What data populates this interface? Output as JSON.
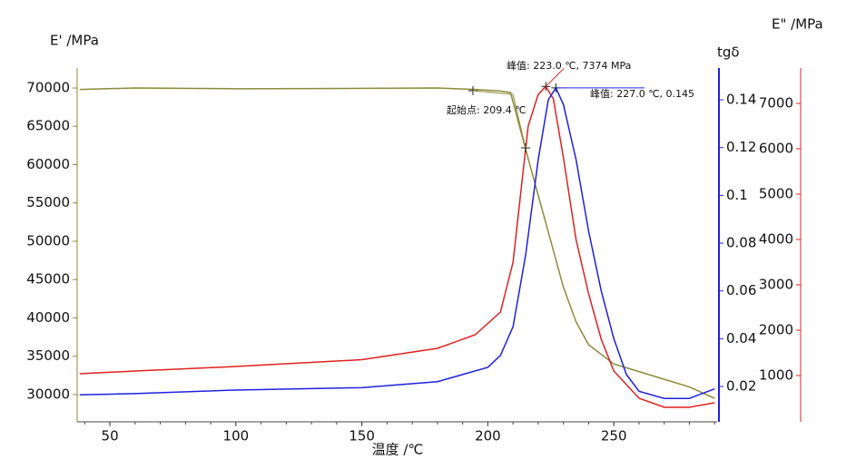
{
  "chart_data": {
    "type": "line",
    "x_label": "温度 /℃",
    "y_label": "E' /MPa",
    "y2_label": "tgδ",
    "y3_label": "E\" /MPa",
    "xlim": [
      37,
      291
    ],
    "xticks": [
      50,
      100,
      150,
      200,
      250
    ],
    "ylim": [
      26450,
      72600
    ],
    "yticks": [
      30000,
      35000,
      40000,
      45000,
      50000,
      55000,
      60000,
      65000,
      70000
    ],
    "y_color": "#8b8b3a",
    "y2lim": [
      0.0052,
      0.1533
    ],
    "y2ticks": [
      0.02,
      0.04,
      0.06,
      0.08,
      0.1,
      0.12,
      0.14
    ],
    "y2_color": "#2020e0",
    "y3lim": [
      -20,
      7780
    ],
    "y3ticks": [
      1000,
      2000,
      3000,
      4000,
      5000,
      6000,
      7000
    ],
    "y3_color": "#e02020",
    "series": [
      {
        "color": "#8b8b3a",
        "axis": "y",
        "x": [
          38,
          60,
          100,
          150,
          180,
          195,
          205,
          209,
          215,
          220,
          225,
          230,
          235,
          240,
          250,
          260,
          270,
          280,
          290
        ],
        "values": [
          69800,
          70000,
          69900,
          69950,
          70000,
          69800,
          69600,
          69400,
          62000,
          56000,
          50000,
          44000,
          39500,
          36500,
          34000,
          33000,
          32000,
          31000,
          29500
        ]
      },
      {
        "color": "#e02020",
        "axis": "y3",
        "x": [
          38,
          60,
          100,
          150,
          180,
          195,
          205,
          210,
          213,
          216,
          220,
          223,
          226,
          230,
          235,
          240,
          245,
          250,
          260,
          270,
          280,
          290
        ],
        "values": [
          1040,
          1100,
          1200,
          1350,
          1600,
          1900,
          2400,
          3500,
          5000,
          6500,
          7200,
          7374,
          7100,
          5800,
          4000,
          2800,
          1800,
          1100,
          500,
          300,
          300,
          400
        ]
      },
      {
        "color": "#2020e0",
        "axis": "y2",
        "x": [
          38,
          60,
          100,
          150,
          180,
          200,
          205,
          210,
          215,
          220,
          224,
          227,
          230,
          235,
          240,
          245,
          250,
          255,
          260,
          270,
          280,
          290
        ],
        "values": [
          0.0165,
          0.017,
          0.0185,
          0.0195,
          0.022,
          0.028,
          0.033,
          0.045,
          0.075,
          0.115,
          0.14,
          0.145,
          0.138,
          0.115,
          0.085,
          0.06,
          0.04,
          0.025,
          0.018,
          0.015,
          0.015,
          0.019
        ]
      }
    ],
    "annotations": [
      {
        "text": "峰值: 223.0 ℃, 7374 MPa",
        "x": 223,
        "y": 7374,
        "axis": "y3",
        "color": "#e02020"
      },
      {
        "text": "峰值: 227.0 ℃, 0.145",
        "x": 227,
        "y": 0.145,
        "axis": "y2",
        "color": "#2020e0"
      },
      {
        "text": "起始点: 209.4 ℃",
        "color": "#8b8b3a"
      }
    ]
  }
}
